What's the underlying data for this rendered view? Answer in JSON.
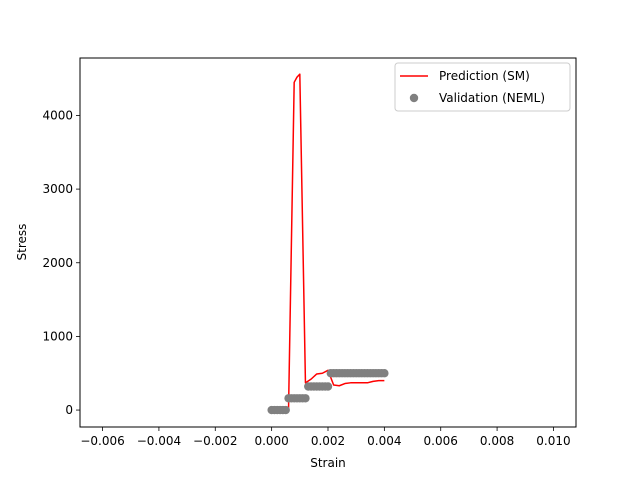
{
  "chart_data": {
    "type": "line",
    "title": "",
    "xlabel": "Strain",
    "ylabel": "Stress",
    "xlim": [
      -0.0068,
      0.0108
    ],
    "ylim": [
      -230,
      4780
    ],
    "xticks": [
      -0.006,
      -0.004,
      -0.002,
      0.0,
      0.002,
      0.004,
      0.006,
      0.008,
      0.01
    ],
    "xtick_labels": [
      "−0.006",
      "−0.004",
      "−0.002",
      "0.000",
      "0.002",
      "0.004",
      "0.006",
      "0.008",
      "0.010"
    ],
    "yticks": [
      0,
      1000,
      2000,
      3000,
      4000
    ],
    "ytick_labels": [
      "0",
      "1000",
      "2000",
      "3000",
      "4000"
    ],
    "grid": false,
    "legend_position": "top-right",
    "series": [
      {
        "name": "Prediction (SM)",
        "kind": "line",
        "color": "#ff0000",
        "x": [
          0.0,
          0.0002,
          0.0004,
          0.0006,
          0.0008,
          0.0009,
          0.001,
          0.0012,
          0.0014,
          0.0016,
          0.0018,
          0.002,
          0.0022,
          0.0024,
          0.0026,
          0.0028,
          0.003,
          0.0032,
          0.0034,
          0.0036,
          0.0038,
          0.004
        ],
        "y": [
          0,
          0,
          0,
          20,
          4450,
          4520,
          4560,
          370,
          420,
          490,
          500,
          540,
          340,
          330,
          360,
          370,
          370,
          370,
          370,
          390,
          400,
          400
        ]
      },
      {
        "name": "Validation (NEML)",
        "kind": "scatter",
        "color": "#808080",
        "x": [
          0.0,
          0.0001,
          0.0002,
          0.0003,
          0.0004,
          0.0005,
          0.0006,
          0.0007,
          0.0008,
          0.0009,
          0.001,
          0.0011,
          0.0012,
          0.0013,
          0.0014,
          0.0015,
          0.0016,
          0.0017,
          0.0018,
          0.0019,
          0.002,
          0.0021,
          0.0022,
          0.0023,
          0.0024,
          0.0025,
          0.0026,
          0.0027,
          0.0028,
          0.0029,
          0.003,
          0.0031,
          0.0032,
          0.0033,
          0.0034,
          0.0035,
          0.0036,
          0.0037,
          0.0038,
          0.0039,
          0.004
        ],
        "y": [
          0,
          0,
          0,
          0,
          0,
          0,
          160,
          160,
          160,
          160,
          160,
          160,
          160,
          320,
          320,
          320,
          320,
          320,
          320,
          320,
          320,
          500,
          500,
          500,
          500,
          500,
          500,
          500,
          500,
          500,
          500,
          500,
          500,
          500,
          500,
          500,
          500,
          500,
          500,
          500,
          500
        ]
      }
    ]
  }
}
